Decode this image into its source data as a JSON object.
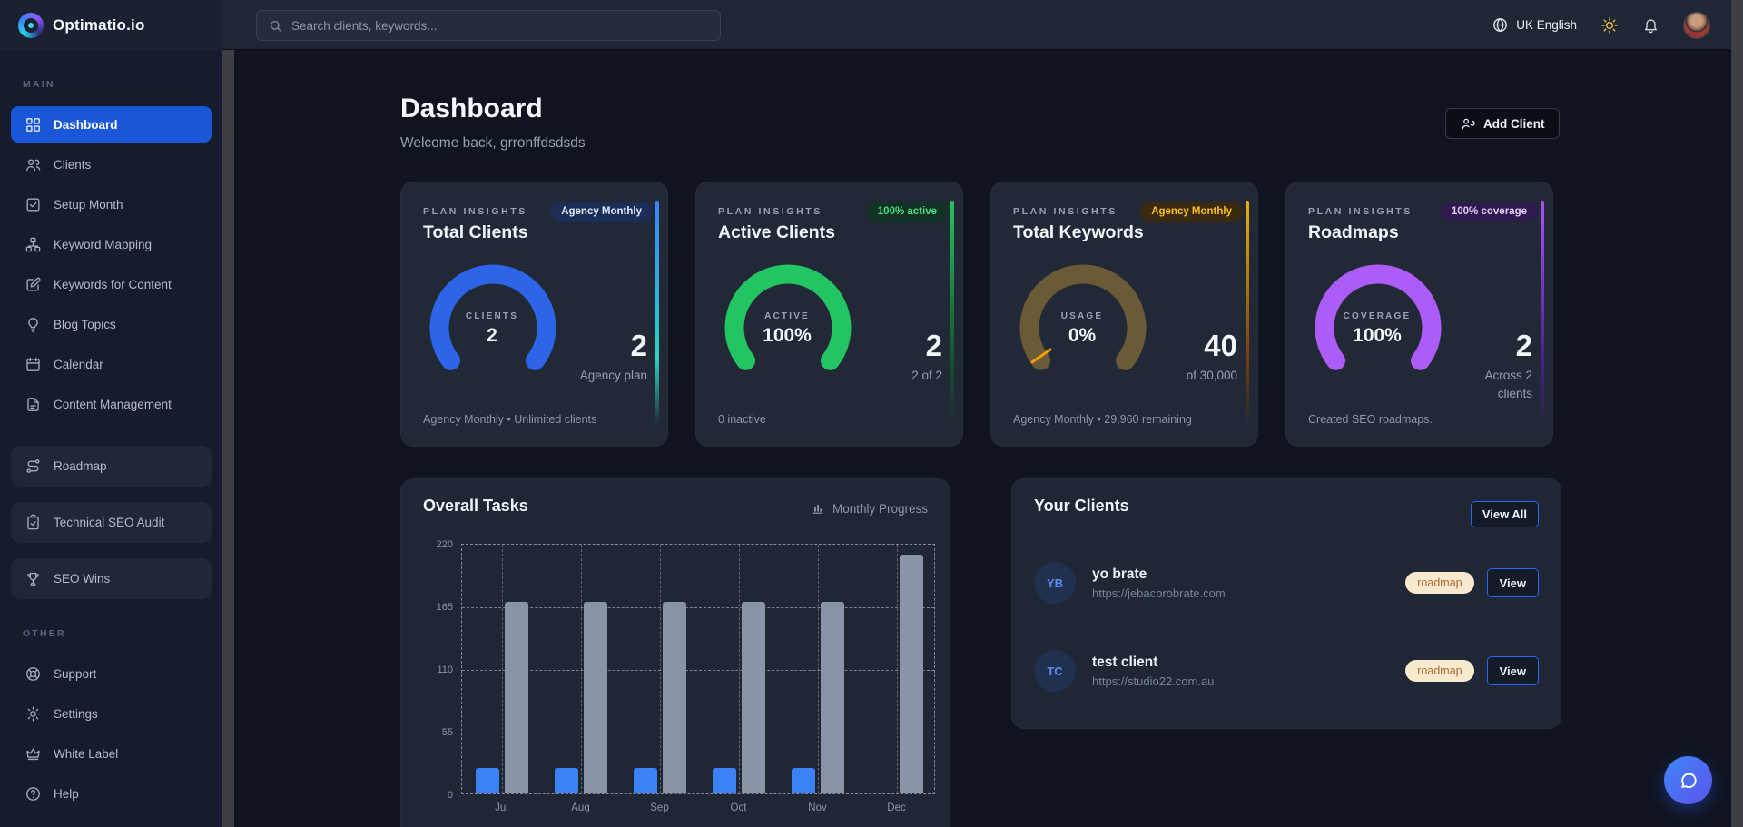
{
  "topbar": {
    "logo_text": "Optimatio.io",
    "search_placeholder": "Search clients, keywords...",
    "language": "UK English"
  },
  "sidebar": {
    "section_main": "MAIN",
    "section_other": "OTHER",
    "main_items": [
      {
        "label": "Dashboard",
        "icon": "grid-icon",
        "active": true
      },
      {
        "label": "Clients",
        "icon": "users-icon"
      },
      {
        "label": "Setup Month",
        "icon": "check-square-icon"
      },
      {
        "label": "Keyword Mapping",
        "icon": "sitemap-icon"
      },
      {
        "label": "Keywords for Content",
        "icon": "edit-square-icon"
      },
      {
        "label": "Blog Topics",
        "icon": "lightbulb-icon"
      },
      {
        "label": "Calendar",
        "icon": "calendar-icon"
      },
      {
        "label": "Content Management",
        "icon": "document-icon"
      }
    ],
    "featured_items": [
      {
        "label": "Roadmap",
        "icon": "route-icon"
      },
      {
        "label": "Technical SEO Audit",
        "icon": "clipboard-check-icon"
      },
      {
        "label": "SEO Wins",
        "icon": "trophy-icon"
      }
    ],
    "other_items": [
      {
        "label": "Support",
        "icon": "lifebuoy-icon"
      },
      {
        "label": "Settings",
        "icon": "gear-icon"
      },
      {
        "label": "White Label",
        "icon": "crown-icon"
      },
      {
        "label": "Help",
        "icon": "help-circle-icon"
      }
    ]
  },
  "header": {
    "title": "Dashboard",
    "welcome": "Welcome back, grronffdsdsds",
    "add_client_label": "Add Client"
  },
  "insight_cards": [
    {
      "eyebrow": "PLAN INSIGHTS",
      "title": "Total Clients",
      "badge": {
        "label": "Agency Monthly",
        "bg": "#1c2e55",
        "color": "#dfe9ff"
      },
      "gauge": {
        "label": "CLIENTS",
        "value": "2",
        "color": "#2e64e8"
      },
      "stat": {
        "value": "2",
        "sub_lines": [
          "Agency plan"
        ]
      },
      "footer": "Agency Monthly • Unlimited clients",
      "accent_from": "#3b82f6",
      "accent_to": "#2dd4bf"
    },
    {
      "eyebrow": "PLAN INSIGHTS",
      "title": "Active Clients",
      "badge": {
        "label": "100% active",
        "bg": "#113224",
        "color": "#4ade80"
      },
      "gauge": {
        "label": "ACTIVE",
        "value": "100%",
        "color": "#23c462"
      },
      "stat": {
        "value": "2",
        "sub_lines": [
          "2 of 2"
        ]
      },
      "footer": "0 inactive",
      "accent_from": "#22c55e",
      "accent_to": "#14532d"
    },
    {
      "eyebrow": "PLAN INSIGHTS",
      "title": "Total Keywords",
      "badge": {
        "label": "Agency Monthly",
        "bg": "#3a2a12",
        "color": "#fbbf24"
      },
      "gauge": {
        "label": "USAGE",
        "value": "0%",
        "color": "#6b5a36",
        "tick_color": "#f59e0b"
      },
      "stat": {
        "value": "40",
        "sub_lines": [
          "of 30,000"
        ]
      },
      "footer": "Agency Monthly • 29,960 remaining",
      "accent_from": "#eab308",
      "accent_to": "#713f12"
    },
    {
      "eyebrow": "PLAN INSIGHTS",
      "title": "Roadmaps",
      "badge": {
        "label": "100% coverage",
        "bg": "#2e1a4d",
        "color": "#e3ccfb"
      },
      "gauge": {
        "label": "COVERAGE",
        "value": "100%",
        "color": "#ad5cf7"
      },
      "stat": {
        "value": "2",
        "sub_lines": [
          "Across 2",
          "clients"
        ]
      },
      "footer": "Created SEO roadmaps.",
      "accent_from": "#a855f7",
      "accent_to": "#4c1d95"
    }
  ],
  "overall_tasks": {
    "title": "Overall Tasks",
    "toolbar_label": "Monthly Progress",
    "chart_data": {
      "type": "bar",
      "title": "Overall Tasks",
      "categories": [
        "Jul",
        "Aug",
        "Sep",
        "Oct",
        "Nov",
        "Dec"
      ],
      "series": [
        {
          "name": "monthly-blue",
          "color": "#3b82f6",
          "values": [
            22,
            22,
            22,
            22,
            22,
            0
          ]
        },
        {
          "name": "monthly-gray",
          "color": "#8a94a6",
          "values": [
            168,
            168,
            168,
            168,
            168,
            210
          ]
        }
      ],
      "ylim": [
        0,
        220
      ],
      "yticks": [
        0,
        55,
        110,
        165,
        220
      ],
      "grid": "dashed",
      "legend": "none"
    }
  },
  "clients_panel": {
    "title": "Your Clients",
    "view_all_label": "View All",
    "rows": [
      {
        "initials": "YB",
        "name": "yo brate",
        "url": "https://jebacbrobrate.com",
        "tag": "roadmap",
        "action": "View"
      },
      {
        "initials": "TC",
        "name": "test client",
        "url": "https://studio22.com.au",
        "tag": "roadmap",
        "action": "View"
      }
    ]
  },
  "colors": {
    "page_bg": "#0f141f",
    "topbar_bg": "#1f2634",
    "sidebar_bg": "#161c2d",
    "card_bg": "#212937",
    "panel_bg": "#1f2735",
    "active_nav": "#1a56d8",
    "accent_blue": "#2b66f6",
    "text_secondary": "#8d97a8"
  }
}
